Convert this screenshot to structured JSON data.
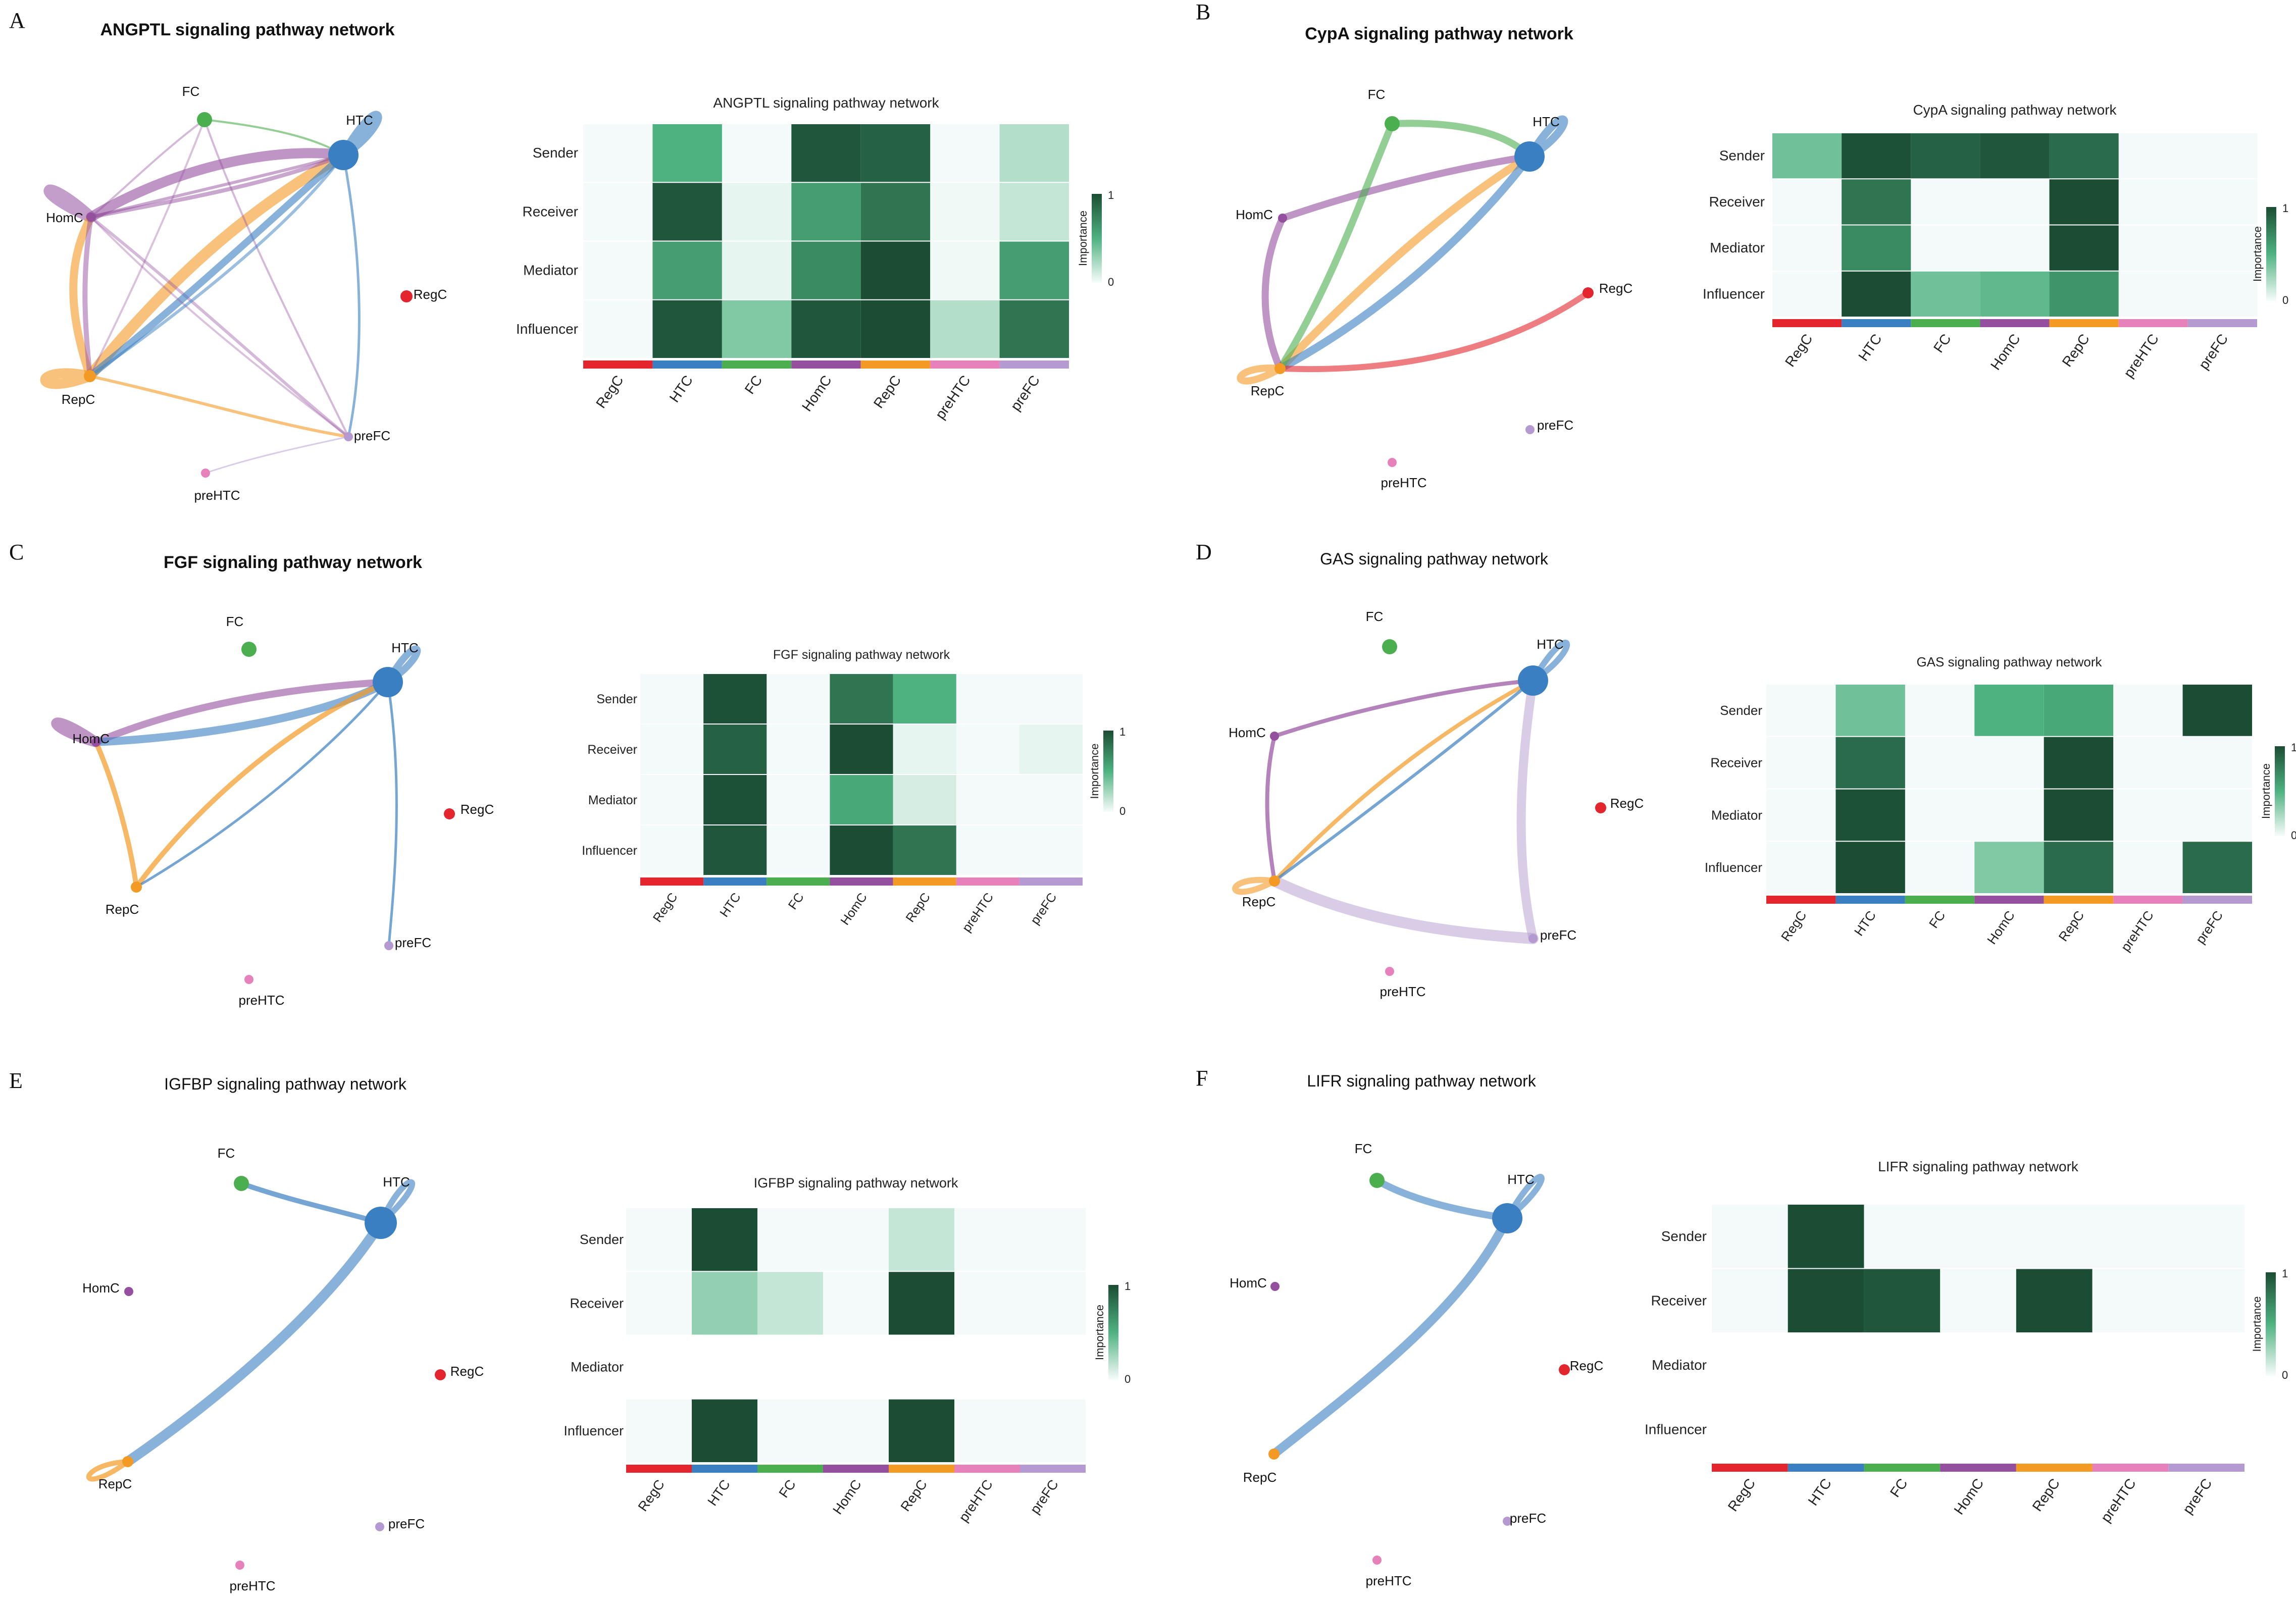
{
  "node_colors": {
    "RegC": "#e3262d",
    "HTC": "#3a7fc1",
    "FC": "#4bae4f",
    "HomC": "#944f9e",
    "RepC": "#f39a24",
    "preHTC": "#e781bb",
    "preFC": "#b49ad0"
  },
  "colorbar": {
    "label": "Importance",
    "max_label": "1",
    "min_label": "0",
    "low_color": "#f7fcfb",
    "high_color": "#1b4d34"
  },
  "chart_data": [
    {
      "panel": "A",
      "type": "heatmap",
      "network_title": "ANGPTL signaling pathway network",
      "title": "ANGPTL signaling pathway network",
      "rows": [
        "Sender",
        "Receiver",
        "Mediator",
        "Influencer"
      ],
      "columns": [
        "RegC",
        "HTC",
        "FC",
        "HomC",
        "RepC",
        "preHTC",
        "preFC"
      ],
      "values": [
        [
          0.0,
          0.5,
          0.0,
          0.95,
          0.9,
          0.0,
          0.2
        ],
        [
          0.0,
          0.95,
          0.05,
          0.6,
          0.8,
          0.02,
          0.15
        ],
        [
          0.0,
          0.6,
          0.05,
          0.7,
          1.0,
          0.02,
          0.6
        ],
        [
          0.0,
          0.95,
          0.35,
          0.95,
          1.0,
          0.2,
          0.8
        ]
      ],
      "nodes": [
        "FC",
        "HTC",
        "HomC",
        "RegC",
        "RepC",
        "preFC",
        "preHTC"
      ],
      "edges": [
        [
          "HomC",
          "HomC"
        ],
        [
          "RepC",
          "RepC"
        ],
        [
          "HTC",
          "HTC"
        ],
        [
          "HomC",
          "HTC"
        ],
        [
          "RepC",
          "HTC"
        ],
        [
          "HomC",
          "RepC"
        ],
        [
          "FC",
          "HTC"
        ],
        [
          "FC",
          "HomC"
        ],
        [
          "HomC",
          "preFC"
        ],
        [
          "RepC",
          "preFC"
        ],
        [
          "HTC",
          "preFC"
        ],
        [
          "FC",
          "preFC"
        ],
        [
          "preHTC",
          "preFC"
        ],
        [
          "HTC",
          "RepC"
        ],
        [
          "HomC",
          "RepC"
        ],
        [
          "RepC",
          "FC"
        ]
      ]
    },
    {
      "panel": "B",
      "type": "heatmap",
      "network_title": "CypA signaling pathway network",
      "title": "CypA signaling pathway network",
      "rows": [
        "Sender",
        "Receiver",
        "Mediator",
        "Influencer"
      ],
      "columns": [
        "RegC",
        "HTC",
        "FC",
        "HomC",
        "RepC",
        "preHTC",
        "preFC"
      ],
      "values": [
        [
          0.4,
          0.98,
          0.9,
          0.95,
          0.85,
          0.0,
          0.0
        ],
        [
          0.0,
          0.8,
          0.0,
          0.0,
          1.0,
          0.0,
          0.0
        ],
        [
          0.0,
          0.7,
          0.0,
          0.0,
          1.0,
          0.0,
          0.0
        ],
        [
          0.0,
          1.0,
          0.4,
          0.45,
          0.65,
          0.0,
          0.0
        ]
      ],
      "nodes": [
        "FC",
        "HTC",
        "HomC",
        "RegC",
        "RepC",
        "preFC",
        "preHTC"
      ],
      "edges": [
        [
          "FC",
          "HTC"
        ],
        [
          "HomC",
          "HTC"
        ],
        [
          "RepC",
          "HTC"
        ],
        [
          "RepC",
          "RegC"
        ],
        [
          "RepC",
          "FC"
        ],
        [
          "HomC",
          "RepC"
        ],
        [
          "RepC",
          "RepC"
        ],
        [
          "HTC",
          "HTC"
        ]
      ]
    },
    {
      "panel": "C",
      "type": "heatmap",
      "network_title": "FGF signaling pathway network",
      "title": "FGF signaling pathway network",
      "rows": [
        "Sender",
        "Receiver",
        "Mediator",
        "Influencer"
      ],
      "columns": [
        "RegC",
        "HTC",
        "FC",
        "HomC",
        "RepC",
        "preHTC",
        "preFC"
      ],
      "values": [
        [
          0.0,
          0.98,
          0.0,
          0.8,
          0.5,
          0.0,
          0.0
        ],
        [
          0.0,
          0.9,
          0.0,
          1.0,
          0.05,
          0.0,
          0.05
        ],
        [
          0.0,
          0.98,
          0.0,
          0.55,
          0.1,
          0.0,
          0.0
        ],
        [
          0.0,
          0.95,
          0.0,
          1.0,
          0.8,
          0.0,
          0.0
        ]
      ],
      "nodes": [
        "FC",
        "HTC",
        "HomC",
        "RegC",
        "RepC",
        "preFC",
        "preHTC"
      ],
      "edges": [
        [
          "HomC",
          "HomC"
        ],
        [
          "HTC",
          "HTC"
        ],
        [
          "HomC",
          "HTC"
        ],
        [
          "RepC",
          "HTC"
        ],
        [
          "HomC",
          "RepC"
        ],
        [
          "HTC",
          "preFC"
        ],
        [
          "RepC",
          "HTC"
        ]
      ]
    },
    {
      "panel": "D",
      "type": "heatmap",
      "network_title": "GAS signaling pathway network",
      "title": "GAS signaling pathway network",
      "rows": [
        "Sender",
        "Receiver",
        "Mediator",
        "Influencer"
      ],
      "columns": [
        "RegC",
        "HTC",
        "FC",
        "HomC",
        "RepC",
        "preHTC",
        "preFC"
      ],
      "values": [
        [
          0.0,
          0.4,
          0.0,
          0.5,
          0.55,
          0.0,
          1.0
        ],
        [
          0.0,
          0.85,
          0.0,
          0.0,
          1.0,
          0.0,
          0.0
        ],
        [
          0.0,
          0.98,
          0.0,
          0.0,
          1.0,
          0.0,
          0.0
        ],
        [
          0.0,
          1.0,
          0.0,
          0.35,
          0.85,
          0.0,
          0.85
        ]
      ],
      "nodes": [
        "FC",
        "HTC",
        "HomC",
        "RegC",
        "RepC",
        "preFC",
        "preHTC"
      ],
      "edges": [
        [
          "HomC",
          "HTC"
        ],
        [
          "RepC",
          "HTC"
        ],
        [
          "HomC",
          "RepC"
        ],
        [
          "RepC",
          "RepC"
        ],
        [
          "HTC",
          "HTC"
        ],
        [
          "RepC",
          "preFC"
        ],
        [
          "HTC",
          "preFC"
        ],
        [
          "RepC",
          "HTC"
        ]
      ]
    },
    {
      "panel": "E",
      "type": "heatmap",
      "network_title": "IGFBP signaling pathway network",
      "title": "IGFBP signaling pathway network",
      "rows": [
        "Sender",
        "Receiver",
        "Mediator",
        "Influencer"
      ],
      "columns": [
        "RegC",
        "HTC",
        "FC",
        "HomC",
        "RepC",
        "preHTC",
        "preFC"
      ],
      "values": [
        [
          0.0,
          1.0,
          0.0,
          0.0,
          0.15,
          0.0,
          0.0
        ],
        [
          0.0,
          0.3,
          0.15,
          0.0,
          1.0,
          0.0,
          0.0
        ],
        [
          null,
          null,
          null,
          null,
          null,
          null,
          null
        ],
        [
          0.0,
          1.0,
          0.0,
          0.0,
          1.0,
          0.0,
          0.0
        ]
      ],
      "nodes": [
        "FC",
        "HTC",
        "HomC",
        "RegC",
        "RepC",
        "preFC",
        "preHTC"
      ],
      "edges": [
        [
          "FC",
          "HTC"
        ],
        [
          "HTC",
          "HTC"
        ],
        [
          "RepC",
          "HTC"
        ],
        [
          "RepC",
          "RepC"
        ]
      ]
    },
    {
      "panel": "F",
      "type": "heatmap",
      "network_title": "LIFR signaling pathway network",
      "title": "LIFR signaling pathway network",
      "rows": [
        "Sender",
        "Receiver",
        "Mediator",
        "Influencer"
      ],
      "columns": [
        "RegC",
        "HTC",
        "FC",
        "HomC",
        "RepC",
        "preHTC",
        "preFC"
      ],
      "values": [
        [
          0.0,
          1.0,
          0.0,
          0.0,
          0.0,
          0.0,
          0.0
        ],
        [
          0.0,
          1.0,
          0.95,
          0.0,
          1.0,
          0.0,
          0.0
        ],
        [
          null,
          null,
          null,
          null,
          null,
          null,
          null
        ],
        [
          null,
          null,
          null,
          null,
          null,
          null,
          null
        ]
      ],
      "nodes": [
        "FC",
        "HTC",
        "HomC",
        "RegC",
        "RepC",
        "preFC",
        "preHTC"
      ],
      "edges": [
        [
          "FC",
          "HTC"
        ],
        [
          "HTC",
          "HTC"
        ],
        [
          "RepC",
          "HTC"
        ]
      ]
    }
  ]
}
